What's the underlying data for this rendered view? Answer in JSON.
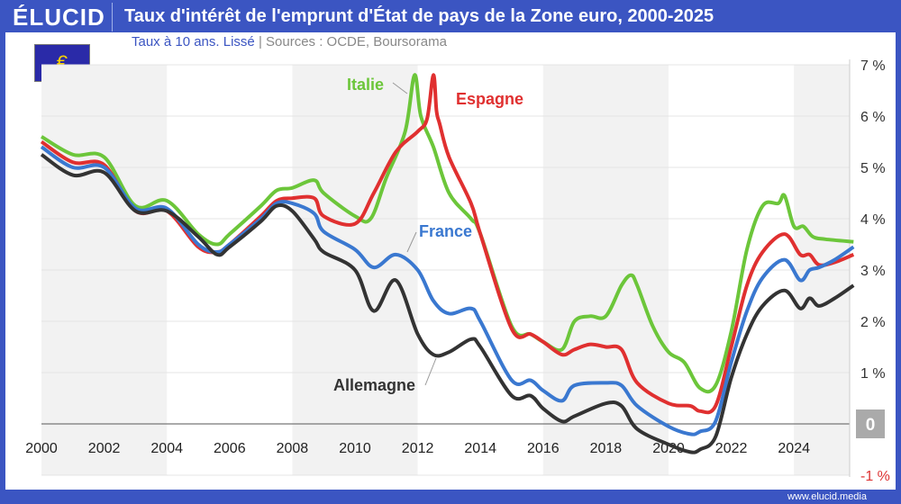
{
  "header": {
    "logo": "ÉLUCID",
    "title": "Taux d'intérêt de l'emprunt d'État de pays de la Zone euro, 2000-2025",
    "subtitle_main": "Taux à 10 ans. Lissé",
    "subtitle_sep": "|",
    "subtitle_sources": "Sources : OCDE, Boursorama",
    "flag_symbol": "€"
  },
  "footer": {
    "url": "www.elucid.media"
  },
  "chart_data": {
    "type": "line",
    "title": "Taux d'intérêt de l'emprunt d'État de pays de la Zone euro, 2000-2025",
    "xlabel": "",
    "ylabel": "",
    "xlim": [
      2000,
      2025.9
    ],
    "ylim": [
      -1,
      7
    ],
    "x_ticks": [
      "2000",
      "2002",
      "2004",
      "2006",
      "2008",
      "2010",
      "2012",
      "2014",
      "2016",
      "2018",
      "2020",
      "2022",
      "2024"
    ],
    "y_ticks": [
      "-1 %",
      "0",
      "1 %",
      "2 %",
      "3 %",
      "4 %",
      "5 %",
      "6 %",
      "7 %"
    ],
    "series": [
      {
        "name": "Italie",
        "color": "#6cc63a",
        "points": [
          [
            2000,
            5.6
          ],
          [
            2001,
            5.25
          ],
          [
            2002,
            5.2
          ],
          [
            2003,
            4.25
          ],
          [
            2004,
            4.35
          ],
          [
            2005,
            3.7
          ],
          [
            2005.6,
            3.5
          ],
          [
            2006,
            3.7
          ],
          [
            2007,
            4.25
          ],
          [
            2007.5,
            4.55
          ],
          [
            2008,
            4.6
          ],
          [
            2008.7,
            4.75
          ],
          [
            2009,
            4.5
          ],
          [
            2010,
            4.05
          ],
          [
            2010.5,
            4.0
          ],
          [
            2011,
            4.8
          ],
          [
            2011.6,
            5.7
          ],
          [
            2011.9,
            6.8
          ],
          [
            2012.1,
            6.0
          ],
          [
            2012.5,
            5.4
          ],
          [
            2013,
            4.5
          ],
          [
            2013.7,
            4.0
          ],
          [
            2014,
            3.7
          ],
          [
            2015,
            1.9
          ],
          [
            2015.6,
            1.75
          ],
          [
            2016,
            1.6
          ],
          [
            2016.6,
            1.45
          ],
          [
            2017,
            2.0
          ],
          [
            2017.5,
            2.1
          ],
          [
            2018,
            2.1
          ],
          [
            2018.5,
            2.7
          ],
          [
            2018.8,
            2.9
          ],
          [
            2019,
            2.7
          ],
          [
            2019.5,
            1.9
          ],
          [
            2020,
            1.4
          ],
          [
            2020.5,
            1.2
          ],
          [
            2021,
            0.7
          ],
          [
            2021.5,
            0.75
          ],
          [
            2022,
            1.8
          ],
          [
            2022.5,
            3.4
          ],
          [
            2023,
            4.25
          ],
          [
            2023.5,
            4.3
          ],
          [
            2023.7,
            4.45
          ],
          [
            2024,
            3.85
          ],
          [
            2024.3,
            3.85
          ],
          [
            2024.6,
            3.65
          ],
          [
            2025,
            3.6
          ],
          [
            2025.9,
            3.55
          ]
        ]
      },
      {
        "name": "Espagne",
        "color": "#e03030",
        "points": [
          [
            2000,
            5.5
          ],
          [
            2001,
            5.1
          ],
          [
            2002,
            5.05
          ],
          [
            2003,
            4.15
          ],
          [
            2004,
            4.15
          ],
          [
            2005,
            3.45
          ],
          [
            2005.6,
            3.35
          ],
          [
            2006,
            3.5
          ],
          [
            2007,
            4.05
          ],
          [
            2007.5,
            4.35
          ],
          [
            2008,
            4.4
          ],
          [
            2008.7,
            4.4
          ],
          [
            2009,
            4.05
          ],
          [
            2010,
            3.9
          ],
          [
            2010.6,
            4.5
          ],
          [
            2011.3,
            5.3
          ],
          [
            2012,
            5.7
          ],
          [
            2012.3,
            5.95
          ],
          [
            2012.5,
            6.8
          ],
          [
            2012.6,
            6.1
          ],
          [
            2012.7,
            5.85
          ],
          [
            2013,
            5.2
          ],
          [
            2013.7,
            4.3
          ],
          [
            2014,
            3.7
          ],
          [
            2015,
            1.85
          ],
          [
            2015.6,
            1.75
          ],
          [
            2016,
            1.6
          ],
          [
            2016.6,
            1.35
          ],
          [
            2017,
            1.45
          ],
          [
            2017.5,
            1.55
          ],
          [
            2018,
            1.5
          ],
          [
            2018.5,
            1.45
          ],
          [
            2019,
            0.8
          ],
          [
            2020,
            0.4
          ],
          [
            2020.7,
            0.35
          ],
          [
            2021,
            0.25
          ],
          [
            2021.5,
            0.35
          ],
          [
            2022,
            1.5
          ],
          [
            2022.5,
            2.7
          ],
          [
            2023,
            3.35
          ],
          [
            2023.7,
            3.7
          ],
          [
            2024.2,
            3.3
          ],
          [
            2024.5,
            3.3
          ],
          [
            2024.8,
            3.1
          ],
          [
            2025.3,
            3.15
          ],
          [
            2025.9,
            3.3
          ]
        ]
      },
      {
        "name": "France",
        "color": "#3a78d0",
        "points": [
          [
            2000,
            5.4
          ],
          [
            2001,
            5.0
          ],
          [
            2002,
            5.0
          ],
          [
            2003,
            4.2
          ],
          [
            2004,
            4.2
          ],
          [
            2005,
            3.5
          ],
          [
            2005.6,
            3.35
          ],
          [
            2006,
            3.5
          ],
          [
            2007,
            4.0
          ],
          [
            2007.5,
            4.3
          ],
          [
            2008,
            4.3
          ],
          [
            2008.7,
            4.1
          ],
          [
            2009,
            3.75
          ],
          [
            2010,
            3.4
          ],
          [
            2010.6,
            3.05
          ],
          [
            2011.3,
            3.3
          ],
          [
            2012,
            3.0
          ],
          [
            2012.5,
            2.4
          ],
          [
            2013,
            2.15
          ],
          [
            2013.7,
            2.25
          ],
          [
            2014,
            2.0
          ],
          [
            2015,
            0.85
          ],
          [
            2015.6,
            0.85
          ],
          [
            2016,
            0.65
          ],
          [
            2016.6,
            0.45
          ],
          [
            2017,
            0.75
          ],
          [
            2018,
            0.8
          ],
          [
            2018.5,
            0.75
          ],
          [
            2019,
            0.35
          ],
          [
            2020,
            -0.05
          ],
          [
            2020.7,
            -0.2
          ],
          [
            2021,
            -0.15
          ],
          [
            2021.5,
            0.05
          ],
          [
            2022,
            1.2
          ],
          [
            2022.5,
            2.2
          ],
          [
            2023,
            2.85
          ],
          [
            2023.7,
            3.2
          ],
          [
            2024.2,
            2.8
          ],
          [
            2024.5,
            3.0
          ],
          [
            2024.8,
            3.05
          ],
          [
            2025.3,
            3.2
          ],
          [
            2025.9,
            3.45
          ]
        ]
      },
      {
        "name": "Allemagne",
        "color": "#333333",
        "points": [
          [
            2000,
            5.25
          ],
          [
            2001,
            4.85
          ],
          [
            2002,
            4.9
          ],
          [
            2003,
            4.15
          ],
          [
            2004,
            4.15
          ],
          [
            2005,
            3.65
          ],
          [
            2005.6,
            3.3
          ],
          [
            2006,
            3.45
          ],
          [
            2007,
            3.95
          ],
          [
            2007.5,
            4.25
          ],
          [
            2008,
            4.15
          ],
          [
            2008.7,
            3.6
          ],
          [
            2009,
            3.35
          ],
          [
            2010,
            3.0
          ],
          [
            2010.6,
            2.2
          ],
          [
            2011.3,
            2.8
          ],
          [
            2012,
            1.75
          ],
          [
            2012.5,
            1.35
          ],
          [
            2013,
            1.4
          ],
          [
            2013.7,
            1.65
          ],
          [
            2014,
            1.5
          ],
          [
            2015,
            0.55
          ],
          [
            2015.6,
            0.55
          ],
          [
            2016,
            0.3
          ],
          [
            2016.6,
            0.05
          ],
          [
            2017,
            0.15
          ],
          [
            2018,
            0.4
          ],
          [
            2018.5,
            0.35
          ],
          [
            2019,
            -0.1
          ],
          [
            2020,
            -0.4
          ],
          [
            2020.7,
            -0.55
          ],
          [
            2021,
            -0.5
          ],
          [
            2021.5,
            -0.25
          ],
          [
            2022,
            0.9
          ],
          [
            2022.5,
            1.75
          ],
          [
            2023,
            2.3
          ],
          [
            2023.7,
            2.6
          ],
          [
            2024.2,
            2.25
          ],
          [
            2024.5,
            2.45
          ],
          [
            2024.8,
            2.3
          ],
          [
            2025.3,
            2.45
          ],
          [
            2025.9,
            2.7
          ]
        ]
      }
    ]
  }
}
